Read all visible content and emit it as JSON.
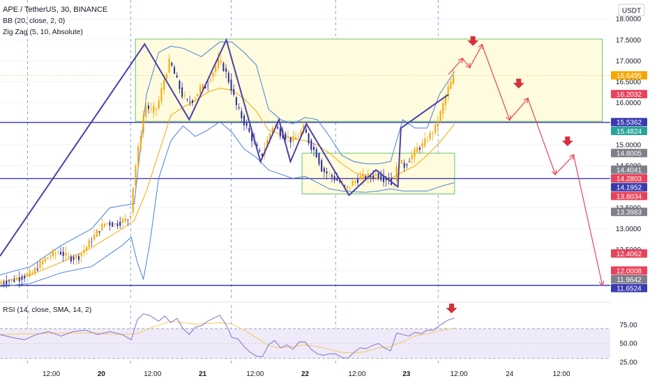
{
  "legend": {
    "symbol": "APE / TetherUS, 30, BINANCE",
    "bb": "BB (20, close, 2, 0)",
    "zigzag": "Zig Zag (5, 10, Absolute)",
    "rsi": "RSI (14, close, SMA, 14, 2)"
  },
  "currency": "USDT",
  "colors": {
    "up": "#f7a600",
    "down": "#2a2e9c",
    "bb": "#4a80d8",
    "ma": "#f7a600",
    "zigzag": "#4b3fa8",
    "level": "#3a3ab0",
    "forecast": "#e8435a",
    "arrow": "#d5303d",
    "zone_fill": "#fffbdf",
    "zone_border": "#68c36b",
    "rsi_line": "#8c7ccf",
    "rsi_band": "#efeaf9"
  },
  "chart_data": {
    "type": "candlestick",
    "x_ticks": [
      "12:00",
      "20",
      "12:00",
      "21",
      "12:00",
      "22",
      "12:00",
      "23",
      "12:00",
      "24",
      "12:00"
    ],
    "y_ticks": [
      "18.0000",
      "17.5000",
      "17.0000",
      "16.5000",
      "16.0000",
      "15.5000",
      "15.0000",
      "14.5000",
      "14.0000",
      "13.5000",
      "13.0000",
      "12.5000",
      "12.0000"
    ],
    "y_range": [
      11.3,
      18.45
    ],
    "day_separators": [
      "20",
      "21",
      "22",
      "23"
    ],
    "price_labels": [
      {
        "text": "16.6495",
        "value": 16.6495,
        "color": "#f7a600"
      },
      {
        "text": "16.2032",
        "value": 16.2032,
        "color": "#e8435a"
      },
      {
        "text": "15.5362",
        "value": 15.5362,
        "color": "#3a3ab0"
      },
      {
        "text": "15.4824",
        "value": 15.4824,
        "color": "#26a69a"
      },
      {
        "text": "14.8005",
        "value": 14.8005,
        "color": "#7f7f8a"
      },
      {
        "text": "14.4041",
        "value": 14.4041,
        "color": "#7f7f8a"
      },
      {
        "text": "14.2803",
        "value": 14.2803,
        "color": "#e8435a"
      },
      {
        "text": "14.1952",
        "value": 14.1952,
        "color": "#3a3ab0"
      },
      {
        "text": "13.8034",
        "value": 13.8034,
        "color": "#e8435a"
      },
      {
        "text": "13.3983",
        "value": 13.3983,
        "color": "#7f7f8a"
      },
      {
        "text": "12.4062",
        "value": 12.4062,
        "color": "#e8435a"
      },
      {
        "text": "12.0008",
        "value": 12.0008,
        "color": "#e8435a"
      },
      {
        "text": "11.9642",
        "value": 11.9642,
        "color": "#7f7f8a"
      },
      {
        "text": "11.6524",
        "value": 11.6524,
        "color": "#3a3ab0"
      }
    ],
    "horizontal_levels": [
      15.5362,
      14.1952,
      11.6524
    ],
    "current_price": 16.6495,
    "zones": [
      {
        "x0": 0.222,
        "x1": 0.987,
        "y0": 15.56,
        "y1": 17.52
      },
      {
        "x0": 0.495,
        "x1": 0.745,
        "y0": 13.83,
        "y1": 14.8
      }
    ],
    "price_path": [
      [
        0.0,
        11.68
      ],
      [
        0.012,
        11.75
      ],
      [
        0.025,
        11.78
      ],
      [
        0.04,
        11.86
      ],
      [
        0.055,
        11.95
      ],
      [
        0.07,
        12.2
      ],
      [
        0.085,
        12.38
      ],
      [
        0.1,
        12.45
      ],
      [
        0.115,
        12.3
      ],
      [
        0.13,
        12.32
      ],
      [
        0.145,
        12.6
      ],
      [
        0.16,
        12.9
      ],
      [
        0.175,
        13.15
      ],
      [
        0.19,
        13.1
      ],
      [
        0.205,
        13.2
      ],
      [
        0.215,
        13.25
      ],
      [
        0.222,
        14.3
      ],
      [
        0.232,
        15.2
      ],
      [
        0.24,
        15.95
      ],
      [
        0.25,
        15.8
      ],
      [
        0.26,
        15.9
      ],
      [
        0.27,
        16.5
      ],
      [
        0.28,
        17.0
      ],
      [
        0.29,
        16.6
      ],
      [
        0.3,
        16.2
      ],
      [
        0.31,
        16.0
      ],
      [
        0.32,
        16.1
      ],
      [
        0.33,
        16.35
      ],
      [
        0.34,
        16.4
      ],
      [
        0.35,
        16.7
      ],
      [
        0.36,
        17.0
      ],
      [
        0.37,
        16.8
      ],
      [
        0.38,
        16.4
      ],
      [
        0.39,
        15.9
      ],
      [
        0.4,
        15.6
      ],
      [
        0.41,
        15.3
      ],
      [
        0.42,
        15.0
      ],
      [
        0.43,
        14.7
      ],
      [
        0.44,
        15.1
      ],
      [
        0.45,
        15.5
      ],
      [
        0.46,
        15.3
      ],
      [
        0.47,
        15.2
      ],
      [
        0.48,
        15.1
      ],
      [
        0.49,
        15.2
      ],
      [
        0.5,
        15.4
      ],
      [
        0.51,
        15.0
      ],
      [
        0.52,
        14.8
      ],
      [
        0.53,
        14.4
      ],
      [
        0.54,
        14.3
      ],
      [
        0.55,
        14.2
      ],
      [
        0.56,
        14.1
      ],
      [
        0.57,
        13.95
      ],
      [
        0.58,
        14.1
      ],
      [
        0.59,
        14.2
      ],
      [
        0.6,
        14.25
      ],
      [
        0.61,
        14.25
      ],
      [
        0.62,
        14.3
      ],
      [
        0.63,
        14.2
      ],
      [
        0.64,
        14.2
      ],
      [
        0.645,
        14.0
      ],
      [
        0.655,
        14.6
      ],
      [
        0.665,
        14.5
      ],
      [
        0.675,
        14.7
      ],
      [
        0.685,
        14.9
      ],
      [
        0.695,
        15.0
      ],
      [
        0.705,
        15.2
      ],
      [
        0.715,
        15.4
      ],
      [
        0.725,
        15.8
      ],
      [
        0.735,
        16.3
      ],
      [
        0.745,
        16.6
      ]
    ],
    "bb_upper": [
      [
        0.0,
        11.9
      ],
      [
        0.05,
        12.1
      ],
      [
        0.1,
        12.6
      ],
      [
        0.15,
        13.0
      ],
      [
        0.18,
        13.5
      ],
      [
        0.2,
        13.55
      ],
      [
        0.22,
        13.6
      ],
      [
        0.24,
        16.2
      ],
      [
        0.26,
        17.2
      ],
      [
        0.28,
        17.35
      ],
      [
        0.3,
        17.3
      ],
      [
        0.33,
        17.1
      ],
      [
        0.36,
        17.45
      ],
      [
        0.38,
        17.45
      ],
      [
        0.4,
        17.2
      ],
      [
        0.42,
        16.9
      ],
      [
        0.44,
        15.85
      ],
      [
        0.46,
        15.6
      ],
      [
        0.48,
        15.5
      ],
      [
        0.5,
        15.65
      ],
      [
        0.52,
        15.6
      ],
      [
        0.54,
        15.2
      ],
      [
        0.56,
        14.75
      ],
      [
        0.58,
        14.6
      ],
      [
        0.6,
        14.55
      ],
      [
        0.62,
        14.55
      ],
      [
        0.64,
        14.6
      ],
      [
        0.66,
        15.6
      ],
      [
        0.68,
        15.4
      ],
      [
        0.7,
        15.4
      ],
      [
        0.72,
        16.2
      ],
      [
        0.745,
        16.75
      ]
    ],
    "bb_lower": [
      [
        0.0,
        11.62
      ],
      [
        0.05,
        11.7
      ],
      [
        0.1,
        11.95
      ],
      [
        0.15,
        12.1
      ],
      [
        0.18,
        12.4
      ],
      [
        0.2,
        12.6
      ],
      [
        0.215,
        12.8
      ],
      [
        0.225,
        12.2
      ],
      [
        0.235,
        11.8
      ],
      [
        0.245,
        12.6
      ],
      [
        0.26,
        14.2
      ],
      [
        0.28,
        15.1
      ],
      [
        0.3,
        15.45
      ],
      [
        0.32,
        15.2
      ],
      [
        0.34,
        15.35
      ],
      [
        0.36,
        15.55
      ],
      [
        0.38,
        15.3
      ],
      [
        0.4,
        14.9
      ],
      [
        0.42,
        14.7
      ],
      [
        0.44,
        14.4
      ],
      [
        0.46,
        14.3
      ],
      [
        0.48,
        14.2
      ],
      [
        0.5,
        14.25
      ],
      [
        0.52,
        14.1
      ],
      [
        0.54,
        13.95
      ],
      [
        0.56,
        13.9
      ],
      [
        0.58,
        13.88
      ],
      [
        0.6,
        13.87
      ],
      [
        0.62,
        13.9
      ],
      [
        0.64,
        13.95
      ],
      [
        0.66,
        13.9
      ],
      [
        0.68,
        13.9
      ],
      [
        0.7,
        13.9
      ],
      [
        0.72,
        14.0
      ],
      [
        0.745,
        14.1
      ]
    ],
    "ma": [
      [
        0.0,
        11.72
      ],
      [
        0.05,
        11.9
      ],
      [
        0.1,
        12.2
      ],
      [
        0.15,
        12.55
      ],
      [
        0.2,
        13.0
      ],
      [
        0.22,
        13.2
      ],
      [
        0.24,
        13.9
      ],
      [
        0.26,
        14.8
      ],
      [
        0.28,
        15.7
      ],
      [
        0.3,
        15.9
      ],
      [
        0.32,
        16.05
      ],
      [
        0.34,
        16.25
      ],
      [
        0.36,
        16.35
      ],
      [
        0.38,
        16.3
      ],
      [
        0.4,
        16.1
      ],
      [
        0.42,
        15.8
      ],
      [
        0.44,
        15.35
      ],
      [
        0.46,
        15.25
      ],
      [
        0.48,
        15.15
      ],
      [
        0.5,
        15.1
      ],
      [
        0.52,
        15.0
      ],
      [
        0.54,
        14.8
      ],
      [
        0.56,
        14.55
      ],
      [
        0.58,
        14.35
      ],
      [
        0.6,
        14.25
      ],
      [
        0.62,
        14.2
      ],
      [
        0.64,
        14.2
      ],
      [
        0.66,
        14.35
      ],
      [
        0.68,
        14.5
      ],
      [
        0.7,
        14.75
      ],
      [
        0.72,
        15.05
      ],
      [
        0.745,
        15.5
      ]
    ],
    "zigzag": [
      [
        0.0,
        12.35
      ],
      [
        0.237,
        17.4
      ],
      [
        0.31,
        15.6
      ],
      [
        0.371,
        17.5
      ],
      [
        0.427,
        14.6
      ],
      [
        0.457,
        15.6
      ],
      [
        0.476,
        14.6
      ],
      [
        0.502,
        15.5
      ],
      [
        0.572,
        13.8
      ],
      [
        0.616,
        14.4
      ],
      [
        0.652,
        14.0
      ],
      [
        0.657,
        15.4
      ],
      [
        0.735,
        16.2
      ]
    ],
    "forecast": [
      [
        0.735,
        16.68
      ],
      [
        0.758,
        17.05
      ],
      [
        0.77,
        16.85
      ],
      [
        0.79,
        17.38
      ],
      [
        0.835,
        15.6
      ],
      [
        0.865,
        16.1
      ],
      [
        0.91,
        14.3
      ],
      [
        0.94,
        14.75
      ],
      [
        0.987,
        11.66
      ]
    ],
    "forecast_arrows": [
      0.775,
      0.85,
      0.93
    ],
    "rsi": {
      "y_ticks": [
        "75.00",
        "50.00",
        "25.00"
      ],
      "y_range": [
        22,
        100
      ],
      "levels": [
        70,
        30
      ],
      "values": [
        [
          0.0,
          62
        ],
        [
          0.02,
          58
        ],
        [
          0.04,
          55
        ],
        [
          0.06,
          62
        ],
        [
          0.08,
          66
        ],
        [
          0.1,
          60
        ],
        [
          0.12,
          66
        ],
        [
          0.14,
          68
        ],
        [
          0.16,
          62
        ],
        [
          0.18,
          66
        ],
        [
          0.2,
          62
        ],
        [
          0.215,
          55
        ],
        [
          0.225,
          82
        ],
        [
          0.235,
          90
        ],
        [
          0.245,
          88
        ],
        [
          0.26,
          80
        ],
        [
          0.27,
          87
        ],
        [
          0.28,
          78
        ],
        [
          0.29,
          84
        ],
        [
          0.3,
          70
        ],
        [
          0.31,
          62
        ],
        [
          0.32,
          72
        ],
        [
          0.33,
          74
        ],
        [
          0.34,
          80
        ],
        [
          0.35,
          84
        ],
        [
          0.36,
          88
        ],
        [
          0.37,
          76
        ],
        [
          0.38,
          58
        ],
        [
          0.39,
          56
        ],
        [
          0.4,
          46
        ],
        [
          0.41,
          38
        ],
        [
          0.42,
          33
        ],
        [
          0.43,
          32
        ],
        [
          0.44,
          48
        ],
        [
          0.45,
          54
        ],
        [
          0.46,
          44
        ],
        [
          0.47,
          48
        ],
        [
          0.48,
          42
        ],
        [
          0.49,
          52
        ],
        [
          0.5,
          52
        ],
        [
          0.51,
          42
        ],
        [
          0.52,
          36
        ],
        [
          0.53,
          34
        ],
        [
          0.54,
          36
        ],
        [
          0.55,
          36
        ],
        [
          0.56,
          31
        ],
        [
          0.57,
          30
        ],
        [
          0.58,
          38
        ],
        [
          0.59,
          44
        ],
        [
          0.6,
          43
        ],
        [
          0.61,
          47
        ],
        [
          0.62,
          50
        ],
        [
          0.63,
          44
        ],
        [
          0.64,
          40
        ],
        [
          0.65,
          64
        ],
        [
          0.66,
          62
        ],
        [
          0.67,
          60
        ],
        [
          0.68,
          65
        ],
        [
          0.69,
          63
        ],
        [
          0.7,
          68
        ],
        [
          0.71,
          68
        ],
        [
          0.72,
          74
        ],
        [
          0.735,
          82
        ],
        [
          0.745,
          84
        ]
      ],
      "ma": [
        [
          0.0,
          62
        ],
        [
          0.05,
          63
        ],
        [
          0.1,
          64
        ],
        [
          0.15,
          64
        ],
        [
          0.2,
          62
        ],
        [
          0.225,
          63
        ],
        [
          0.25,
          72
        ],
        [
          0.28,
          80
        ],
        [
          0.32,
          76
        ],
        [
          0.36,
          78
        ],
        [
          0.38,
          76
        ],
        [
          0.4,
          68
        ],
        [
          0.42,
          58
        ],
        [
          0.44,
          47
        ],
        [
          0.46,
          44
        ],
        [
          0.48,
          46
        ],
        [
          0.5,
          48
        ],
        [
          0.52,
          46
        ],
        [
          0.54,
          42
        ],
        [
          0.56,
          38
        ],
        [
          0.58,
          37
        ],
        [
          0.6,
          39
        ],
        [
          0.62,
          44
        ],
        [
          0.64,
          46
        ],
        [
          0.66,
          52
        ],
        [
          0.68,
          60
        ],
        [
          0.7,
          63
        ],
        [
          0.72,
          67
        ],
        [
          0.745,
          71
        ]
      ],
      "arrow": 0.74
    }
  }
}
